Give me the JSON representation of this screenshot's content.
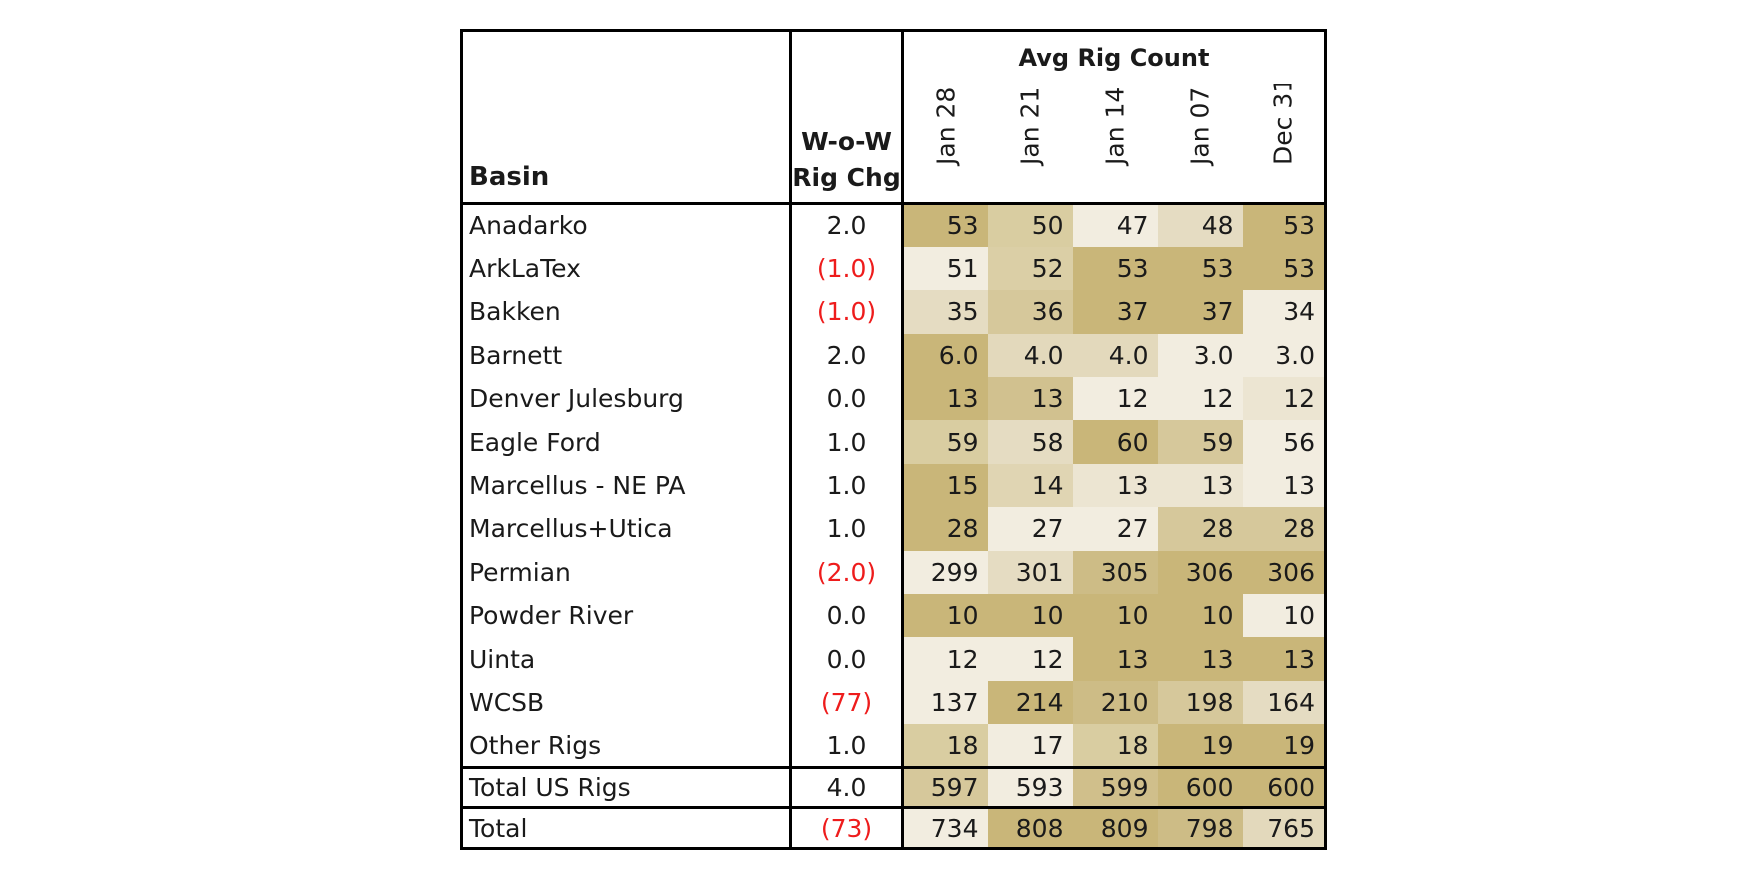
{
  "table": {
    "basin_header": "Basin",
    "change_header_line1": "W-o-W",
    "change_header_line2": "Rig Chg",
    "group_header": "Avg Rig Count",
    "date_columns": [
      "Jan 28",
      "Jan 21",
      "Jan 14",
      "Jan 07",
      "Dec 31"
    ],
    "rows": [
      {
        "basin": "Anadarko",
        "change": "2.0",
        "negative": false,
        "values": [
          "53",
          "50",
          "47",
          "48",
          "53"
        ],
        "shades": [
          "#c9b679",
          "#d9cda1",
          "#f2ede0",
          "#e5dcc2",
          "#c9b679"
        ]
      },
      {
        "basin": "ArkLaTex",
        "change": "(1.0)",
        "negative": true,
        "values": [
          "51",
          "52",
          "53",
          "53",
          "53"
        ],
        "shades": [
          "#f2ede0",
          "#dbcfa6",
          "#c9b679",
          "#c9b679",
          "#c9b679"
        ]
      },
      {
        "basin": "Bakken",
        "change": "(1.0)",
        "negative": true,
        "values": [
          "35",
          "36",
          "37",
          "37",
          "34"
        ],
        "shades": [
          "#e5dcc2",
          "#d6c89b",
          "#c9b679",
          "#c9b679",
          "#f2ede0"
        ]
      },
      {
        "basin": "Barnett",
        "change": "2.0",
        "negative": false,
        "values": [
          "6.0",
          "4.0",
          "4.0",
          "3.0",
          "3.0"
        ],
        "shades": [
          "#c9b679",
          "#e3d9bc",
          "#e3d9bc",
          "#f2ede0",
          "#f2ede0"
        ]
      },
      {
        "basin": "Denver Julesburg",
        "change": "0.0",
        "negative": false,
        "values": [
          "13",
          "13",
          "12",
          "12",
          "12"
        ],
        "shades": [
          "#c9b679",
          "#d1c18f",
          "#f2ede0",
          "#f2ede0",
          "#ece5d2"
        ]
      },
      {
        "basin": "Eagle Ford",
        "change": "1.0",
        "negative": false,
        "values": [
          "59",
          "58",
          "60",
          "59",
          "56"
        ],
        "shades": [
          "#d9cda1",
          "#e5dcc2",
          "#c9b679",
          "#d6c89b",
          "#f2ede0"
        ]
      },
      {
        "basin": "Marcellus - NE PA",
        "change": "1.0",
        "negative": false,
        "values": [
          "15",
          "14",
          "13",
          "13",
          "13"
        ],
        "shades": [
          "#c9b679",
          "#e0d5b3",
          "#ece5d2",
          "#ece5d2",
          "#f2ede0"
        ]
      },
      {
        "basin": "Marcellus+Utica",
        "change": "1.0",
        "negative": false,
        "values": [
          "28",
          "27",
          "27",
          "28",
          "28"
        ],
        "shades": [
          "#c9b679",
          "#f2ede0",
          "#f2ede0",
          "#d6c89b",
          "#d6c89b"
        ]
      },
      {
        "basin": "Permian",
        "change": "(2.0)",
        "negative": true,
        "values": [
          "299",
          "301",
          "305",
          "306",
          "306"
        ],
        "shades": [
          "#f2ede0",
          "#e5dcc2",
          "#cdbc86",
          "#c9b679",
          "#c9b679"
        ]
      },
      {
        "basin": "Powder River",
        "change": "0.0",
        "negative": false,
        "values": [
          "10",
          "10",
          "10",
          "10",
          "10"
        ],
        "shades": [
          "#c9b679",
          "#c9b679",
          "#c9b679",
          "#c9b679",
          "#f2ede0"
        ]
      },
      {
        "basin": "Uinta",
        "change": "0.0",
        "negative": false,
        "values": [
          "12",
          "12",
          "13",
          "13",
          "13"
        ],
        "shades": [
          "#f2ede0",
          "#f2ede0",
          "#c9b679",
          "#c9b679",
          "#c9b679"
        ]
      },
      {
        "basin": "WCSB",
        "change": "(77)",
        "negative": true,
        "values": [
          "137",
          "214",
          "210",
          "198",
          "164"
        ],
        "shades": [
          "#f2ede0",
          "#c9b679",
          "#cdbc86",
          "#d6c89b",
          "#e5dcc2"
        ]
      },
      {
        "basin": "Other Rigs",
        "change": "1.0",
        "negative": false,
        "values": [
          "18",
          "17",
          "18",
          "19",
          "19"
        ],
        "shades": [
          "#d9cda1",
          "#f2ede0",
          "#d9cda1",
          "#c9b679",
          "#c9b679"
        ]
      }
    ],
    "total_us": {
      "basin": "Total US Rigs",
      "change": "4.0",
      "negative": false,
      "values": [
        "597",
        "593",
        "599",
        "600",
        "600"
      ],
      "shades": [
        "#d6c89b",
        "#f2ede0",
        "#d0bf8b",
        "#c9b679",
        "#c9b679"
      ]
    },
    "total": {
      "basin": "Total",
      "change": "(73)",
      "negative": true,
      "values": [
        "734",
        "808",
        "809",
        "798",
        "765"
      ],
      "shades": [
        "#f2ede0",
        "#c9b679",
        "#c9b679",
        "#cdbc86",
        "#e3d9bc"
      ]
    }
  }
}
